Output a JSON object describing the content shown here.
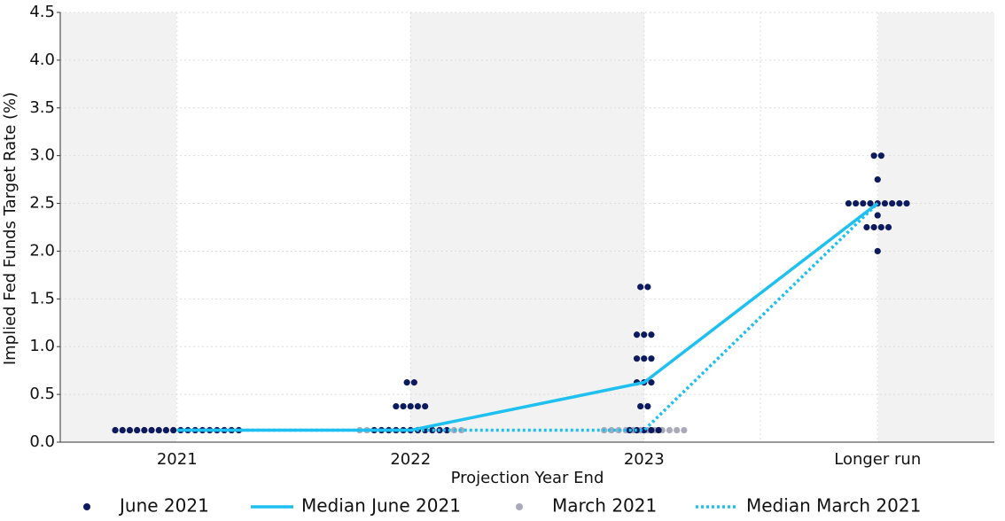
{
  "chart_data": {
    "type": "scatter",
    "categories": [
      "2021",
      "2022",
      "2023",
      "Longer run"
    ],
    "xlabel": "Projection Year End",
    "ylabel": "Implied Fed Funds Target Rate (%)",
    "ylim": [
      0,
      4.5
    ],
    "yticks": [
      {
        "value": 0,
        "label": "0.0"
      },
      {
        "value": 0.5,
        "label": "0.5"
      },
      {
        "value": 1,
        "label": "1.0"
      },
      {
        "value": 1.5,
        "label": "1.5"
      },
      {
        "value": 2,
        "label": "2.0"
      },
      {
        "value": 2.5,
        "label": "2.5"
      },
      {
        "value": 3,
        "label": "3.0"
      },
      {
        "value": 3.5,
        "label": "3.5"
      },
      {
        "value": 4,
        "label": "4.0"
      },
      {
        "value": 4.5,
        "label": "4.5"
      }
    ],
    "grid": true,
    "series": [
      {
        "name": "March 2021",
        "style": "dots",
        "color": "#a9a9ba",
        "values": [
          [
            0.125,
            0.125,
            0.125,
            0.125,
            0.125,
            0.125,
            0.125,
            0.125,
            0.125,
            0.125,
            0.125,
            0.125,
            0.125,
            0.125,
            0.125,
            0.125,
            0.125,
            0.125
          ],
          [
            0.125,
            0.125,
            0.125,
            0.125,
            0.125,
            0.125,
            0.125,
            0.125,
            0.125,
            0.125,
            0.125,
            0.125,
            0.125,
            0.125,
            0.125
          ],
          [
            0.125,
            0.125,
            0.125,
            0.125,
            0.125,
            0.125,
            0.125,
            0.125,
            0.125,
            0.125,
            0.125,
            0.125
          ],
          []
        ]
      },
      {
        "name": "June 2021",
        "style": "dots",
        "color": "#0d1b5e",
        "values": [
          [
            0.125,
            0.125,
            0.125,
            0.125,
            0.125,
            0.125,
            0.125,
            0.125,
            0.125,
            0.125,
            0.125,
            0.125,
            0.125,
            0.125,
            0.125,
            0.125,
            0.125,
            0.125
          ],
          [
            0.625,
            0.625,
            0.375,
            0.375,
            0.375,
            0.375,
            0.375,
            0.125,
            0.125,
            0.125,
            0.125,
            0.125,
            0.125,
            0.125,
            0.125,
            0.125,
            0.125,
            0.125
          ],
          [
            1.625,
            1.625,
            1.125,
            1.125,
            1.125,
            0.875,
            0.875,
            0.875,
            0.625,
            0.625,
            0.625,
            0.375,
            0.375,
            0.125,
            0.125,
            0.125,
            0.125,
            0.125
          ],
          [
            3.0,
            3.0,
            2.75,
            2.5,
            2.5,
            2.5,
            2.5,
            2.5,
            2.5,
            2.5,
            2.5,
            2.5,
            2.375,
            2.25,
            2.25,
            2.25,
            2.25,
            2.0
          ]
        ]
      },
      {
        "name": "Median March 2021",
        "style": "line",
        "dashed": true,
        "color": "#1ec0ef",
        "values": [
          0.125,
          0.125,
          0.125,
          2.5
        ]
      },
      {
        "name": "Median June 2021",
        "style": "line",
        "dashed": false,
        "color": "#1ec0ef",
        "values": [
          0.125,
          0.125,
          0.625,
          2.5
        ]
      }
    ],
    "legend_order": [
      1,
      3,
      0,
      2
    ]
  }
}
